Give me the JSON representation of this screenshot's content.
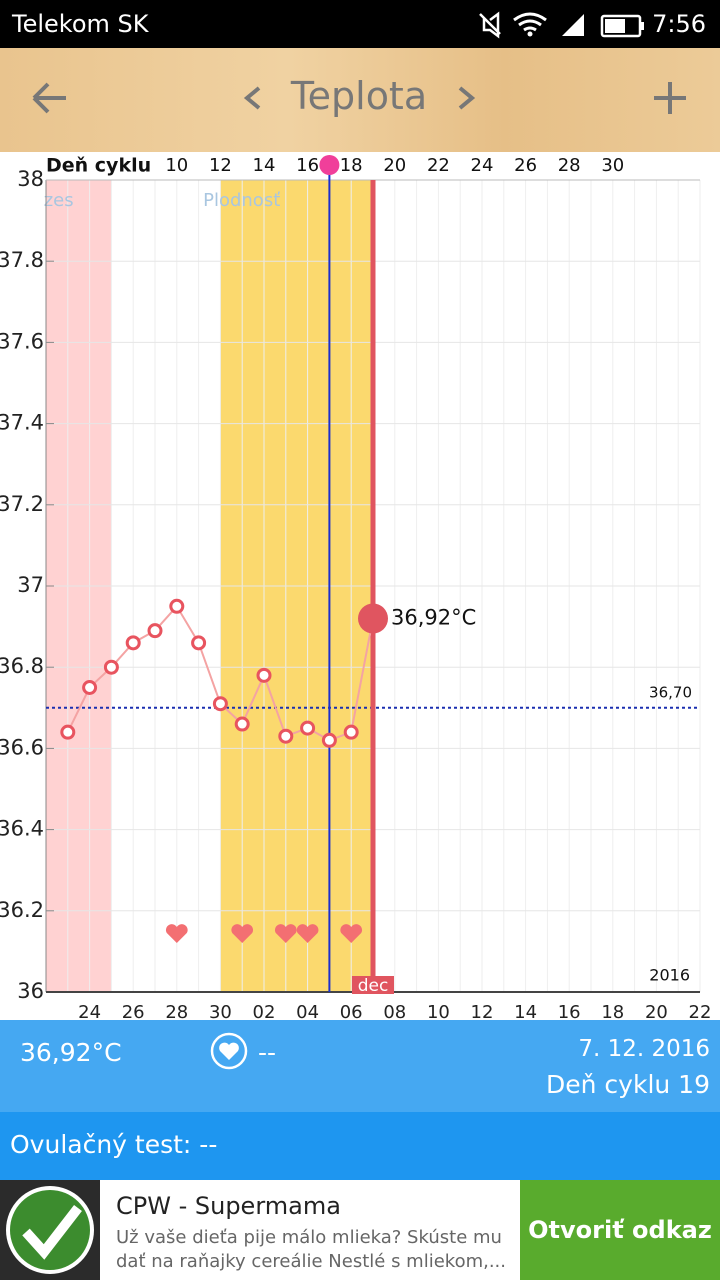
{
  "status_bar": {
    "carrier": "Telekom SK",
    "time": "7:56"
  },
  "header": {
    "title": "Teplota"
  },
  "chart_data": {
    "type": "line",
    "top_axis_title": "Deň cyklu",
    "top_categories": [
      null,
      null,
      null,
      null,
      null,
      null,
      "10",
      null,
      "12",
      null,
      "14",
      null,
      "16",
      null,
      "18",
      null,
      "20",
      null,
      "22",
      null,
      "24",
      null,
      "26",
      null,
      "28",
      null,
      "30",
      null,
      null,
      null,
      null
    ],
    "categories": [
      null,
      null,
      "24",
      null,
      "26",
      null,
      "28",
      null,
      "30",
      null,
      "02",
      null,
      "04",
      null,
      "06",
      null,
      "08",
      null,
      "10",
      null,
      "12",
      null,
      "14",
      null,
      "16",
      null,
      "18",
      null,
      "20",
      null,
      "22"
    ],
    "values": [
      null,
      36.64,
      36.75,
      36.8,
      36.86,
      36.89,
      36.95,
      36.86,
      36.71,
      36.66,
      36.78,
      36.63,
      36.65,
      36.62,
      36.64,
      36.92,
      null,
      null,
      null,
      null,
      null,
      null,
      null,
      null,
      null,
      null,
      null,
      null,
      null,
      null,
      null
    ],
    "value_labels": [
      null,
      null,
      null,
      null,
      null,
      null,
      null,
      null,
      null,
      null,
      null,
      null,
      null,
      null,
      null,
      "36,92°C",
      null,
      null,
      null,
      null,
      null,
      null,
      null,
      null,
      null,
      null,
      null,
      null,
      null,
      null,
      null
    ],
    "line_color": "#f4a3a3",
    "marker_color": "#e8545f",
    "ylim": [
      36,
      38
    ],
    "yticks": [
      36,
      36.2,
      36.4,
      36.6,
      36.8,
      37,
      37.2,
      37.4,
      37.6,
      37.8,
      38
    ],
    "grid": true,
    "coverline": {
      "value": 36.7,
      "label": "36,70"
    },
    "bands": [
      {
        "label": "zes",
        "from": 0,
        "to": 3,
        "color": "#ffd2d2"
      },
      {
        "label": "Plodnosť",
        "from": 8,
        "to": 15,
        "color": "#fbd96e"
      }
    ],
    "hearts": [
      6,
      9,
      11,
      12,
      14
    ],
    "selected_index": 13,
    "today_index": 15,
    "today_label": "dec",
    "year_label": "2016"
  },
  "info_panel": {
    "temperature": "36,92°C",
    "intercourse": "--",
    "date": "7. 12. 2016",
    "cycle_day": "Deň cyklu 19"
  },
  "ovulation": {
    "text": "Ovulačný test: --"
  },
  "ad": {
    "title": "CPW - Supermama",
    "text": "Už vaše dieťa pije málo mlieka? Skúste mu dať na raňajky cereálie Nestlé s mliekom,...",
    "button": "Otvoriť odkaz"
  }
}
